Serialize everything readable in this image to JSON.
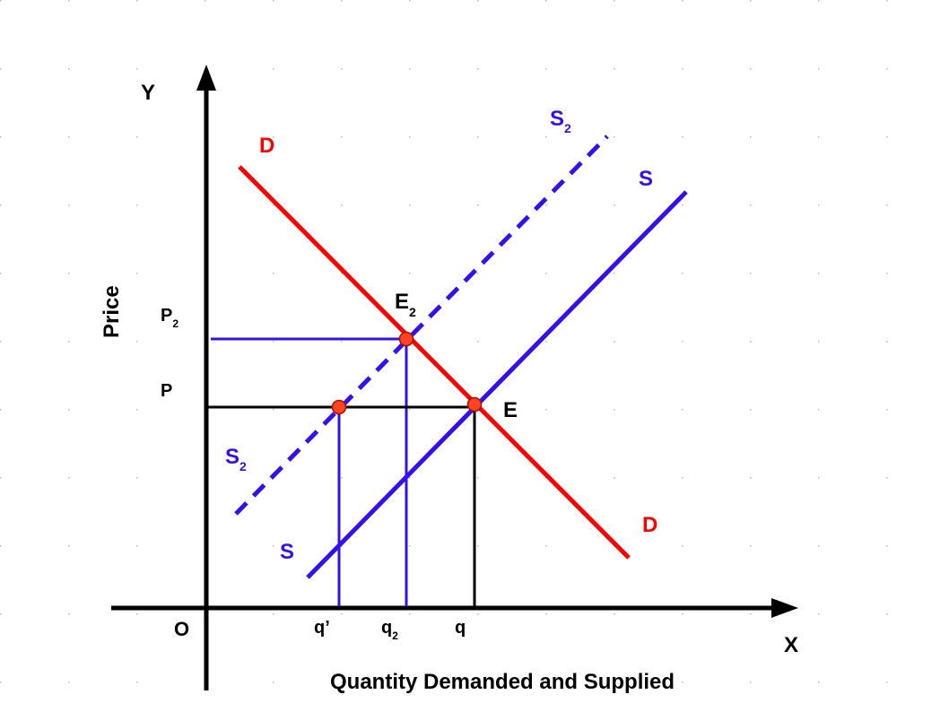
{
  "colors": {
    "demand": "#ff0000",
    "supply": "#3311ee",
    "axis": "#000000",
    "point": "#ff4422",
    "grid_dot": "#bbbbbb"
  },
  "axes": {
    "y_letter": "Y",
    "x_letter": "X",
    "origin": "O",
    "y_title": "Price",
    "x_title": "Quantity Demanded and Supplied"
  },
  "curves": {
    "demand": {
      "label_top": "D",
      "label_bottom": "D"
    },
    "supply": {
      "label_top": "S",
      "label_bottom": "S"
    },
    "supply2": {
      "label_top_main": "S",
      "label_top_sub": "2",
      "label_bottom_main": "S",
      "label_bottom_sub": "2",
      "style": "dashed"
    }
  },
  "points": {
    "e": {
      "label": "E"
    },
    "e2": {
      "label_main": "E",
      "label_sub": "2"
    }
  },
  "price_ticks": {
    "p2_main": "P",
    "p2_sub": "2",
    "p": "P"
  },
  "quantity_ticks": {
    "q_prime": "q’",
    "q2_main": "q",
    "q2_sub": "2",
    "q": "q"
  }
}
